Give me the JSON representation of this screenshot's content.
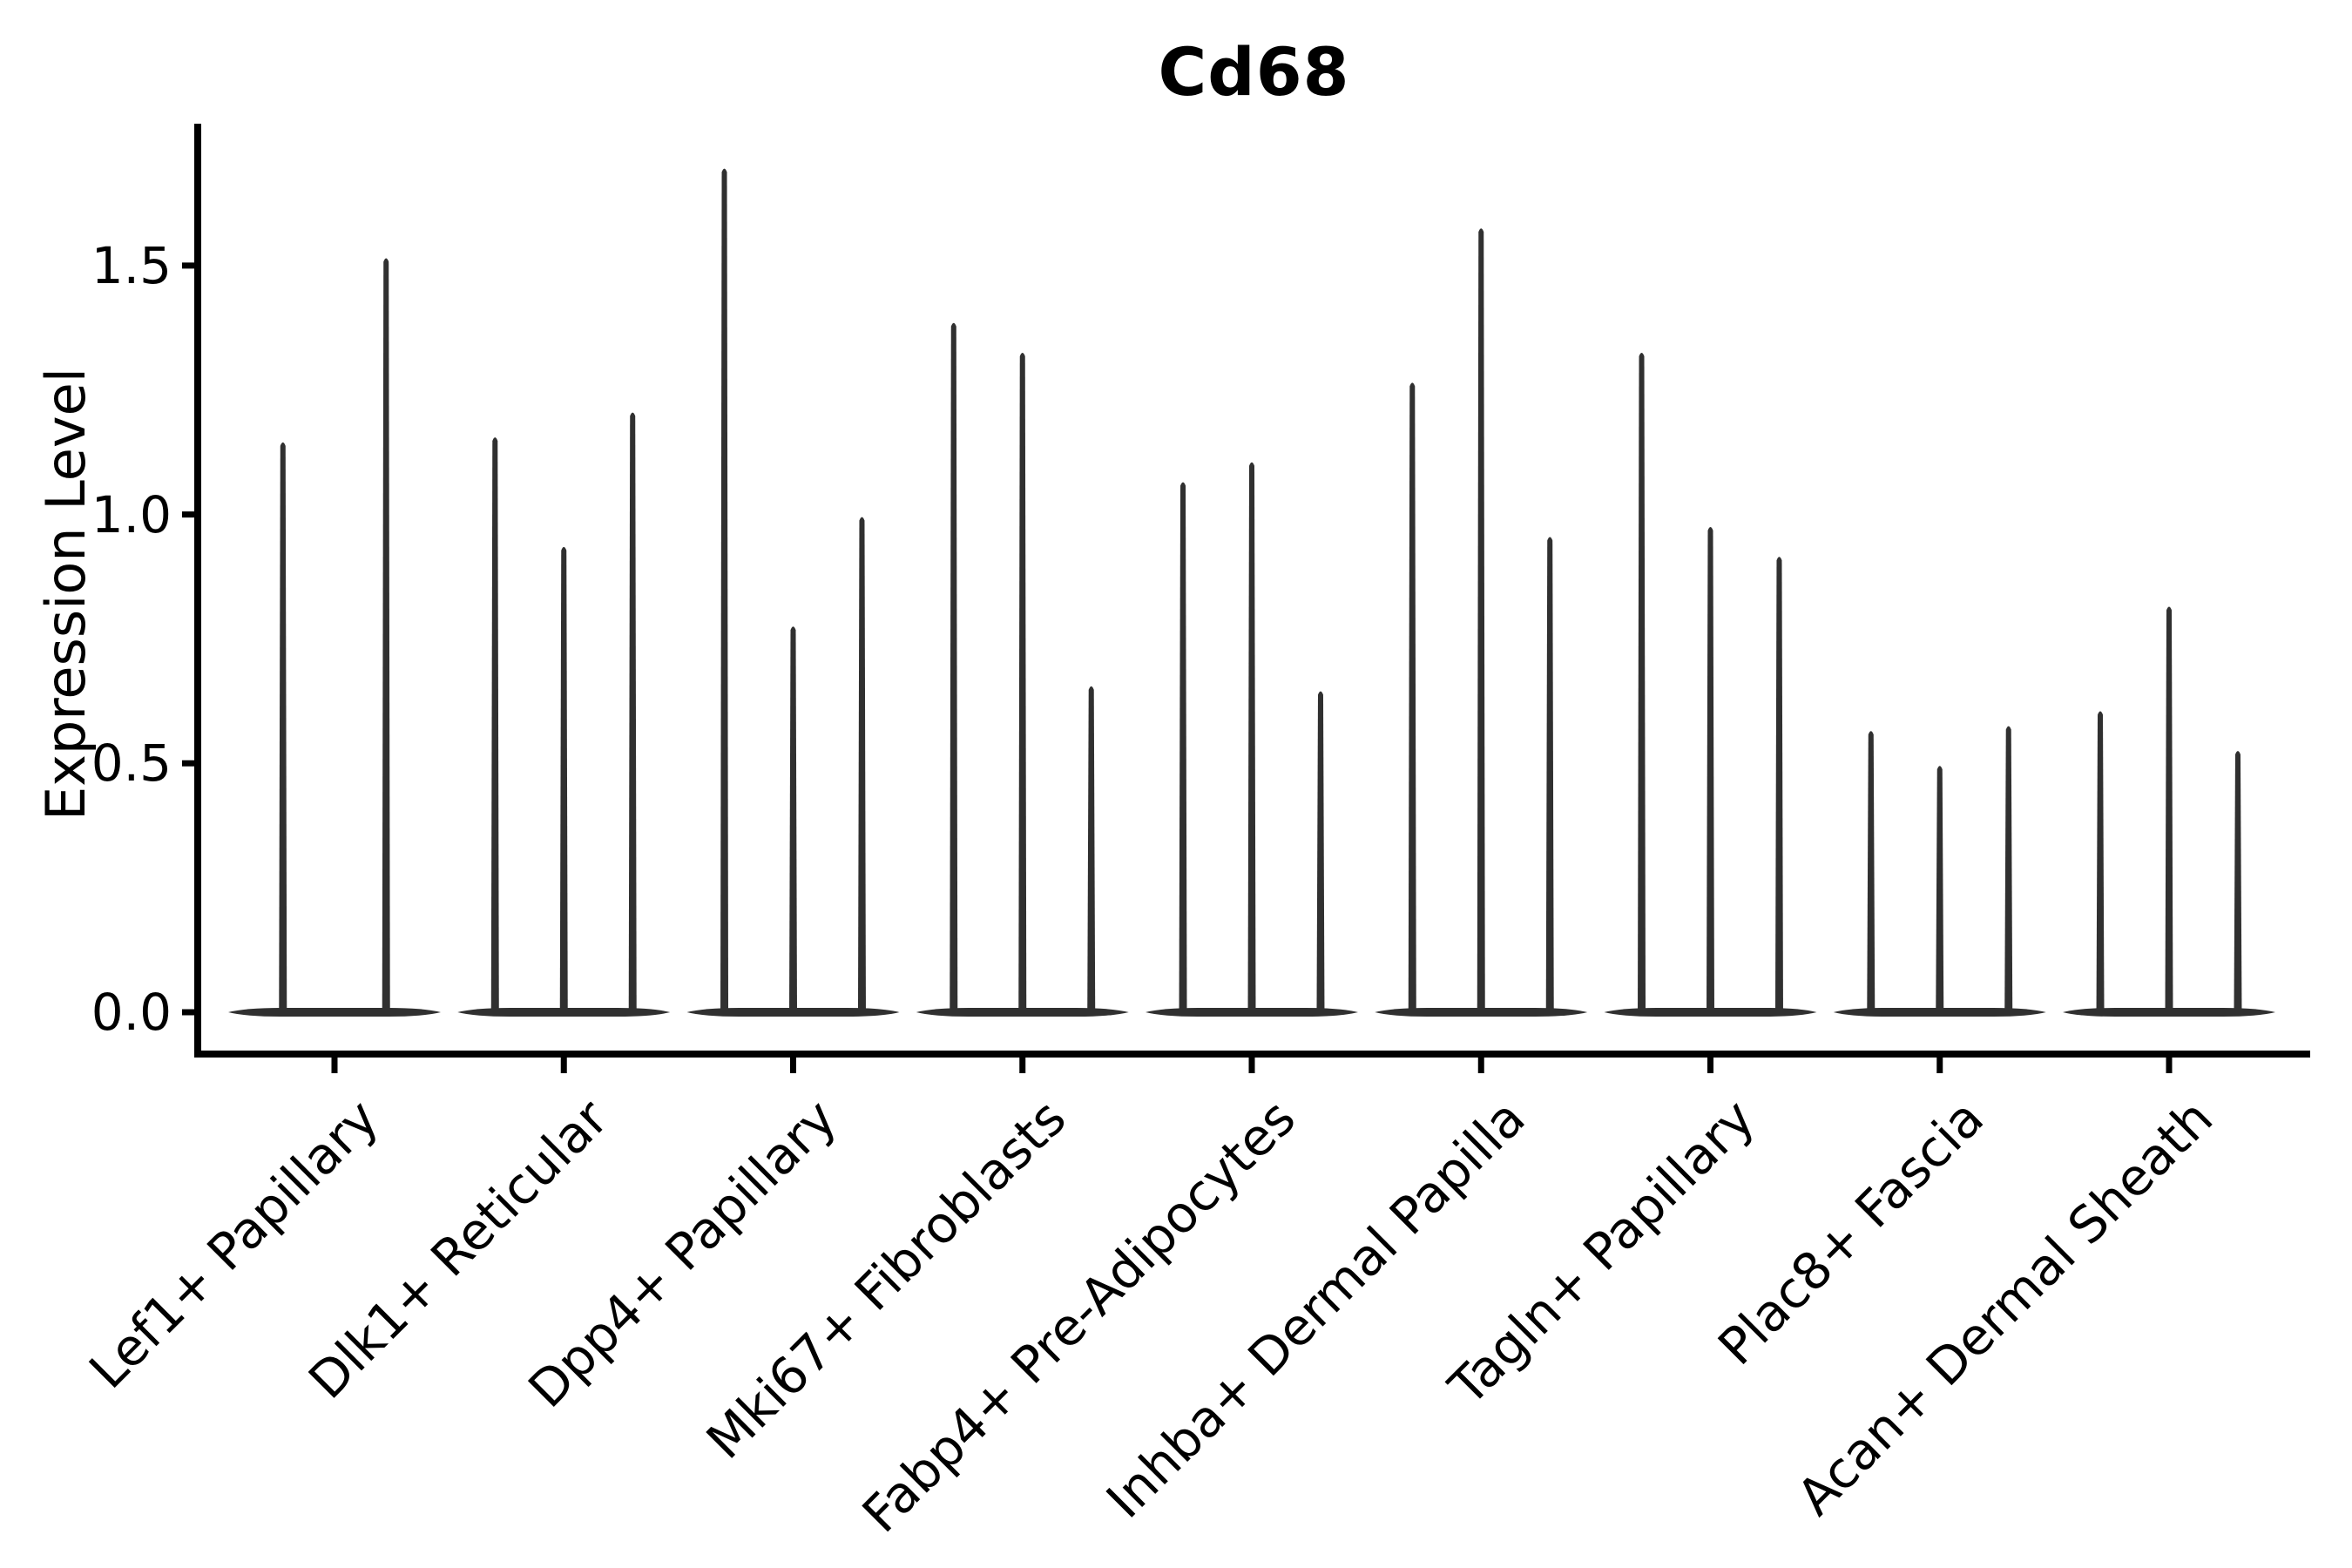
{
  "chart_data": {
    "type": "violin",
    "title": "Cd68",
    "xlabel": "",
    "ylabel": "Expression Level",
    "ylim": [
      -0.08,
      1.78
    ],
    "y_ticks": [
      "0.0",
      "0.5",
      "1.0",
      "1.5"
    ],
    "y_tick_values": [
      0.0,
      0.5,
      1.0,
      1.5
    ],
    "grid": false,
    "legend": null,
    "violin_color": "#303030",
    "axis_color": "#000000",
    "baseline_value": 0.0,
    "categories": [
      "Lef1+ Papillary",
      "Dlk1+ Reticular",
      "Dpp4+ Papillary",
      "Mki67+ Fibroblasts",
      "Fabp4+ Pre-Adipocytes",
      "Inhba+ Dermal Papilla",
      "Tagln+ Papillary",
      "Plac8+ Fascia",
      "Acan+ Dermal Sheath"
    ],
    "groups": [
      {
        "category": "Lef1+ Papillary",
        "spike_max_values": [
          1.15,
          1.52
        ],
        "spike_offsets": [
          -0.225,
          0.225
        ]
      },
      {
        "category": "Dlk1+ Reticular",
        "spike_max_values": [
          1.16,
          0.94,
          1.21
        ],
        "spike_offsets": [
          -0.3,
          0,
          0.3
        ]
      },
      {
        "category": "Dpp4+ Papillary",
        "spike_max_values": [
          1.7,
          0.78,
          1.0
        ],
        "spike_offsets": [
          -0.3,
          0,
          0.3
        ]
      },
      {
        "category": "Mki67+ Fibroblasts",
        "spike_max_values": [
          1.39,
          1.33,
          0.66
        ],
        "spike_offsets": [
          -0.3,
          0,
          0.3
        ]
      },
      {
        "category": "Fabp4+ Pre-Adipocytes",
        "spike_max_values": [
          1.07,
          1.11,
          0.65
        ],
        "spike_offsets": [
          -0.3,
          0,
          0.3
        ]
      },
      {
        "category": "Inhba+ Dermal Papilla",
        "spike_max_values": [
          1.27,
          1.58,
          0.96
        ],
        "spike_offsets": [
          -0.3,
          0,
          0.3
        ]
      },
      {
        "category": "Tagln+ Papillary",
        "spike_max_values": [
          1.33,
          0.98,
          0.92
        ],
        "spike_offsets": [
          -0.3,
          0,
          0.3
        ]
      },
      {
        "category": "Plac8+ Fascia",
        "spike_max_values": [
          0.57,
          0.5,
          0.58
        ],
        "spike_offsets": [
          -0.3,
          0,
          0.3
        ]
      },
      {
        "category": "Acan+ Dermal Sheath",
        "spike_max_values": [
          0.61,
          0.82,
          0.53
        ],
        "spike_offsets": [
          -0.3,
          0,
          0.3
        ]
      }
    ]
  }
}
